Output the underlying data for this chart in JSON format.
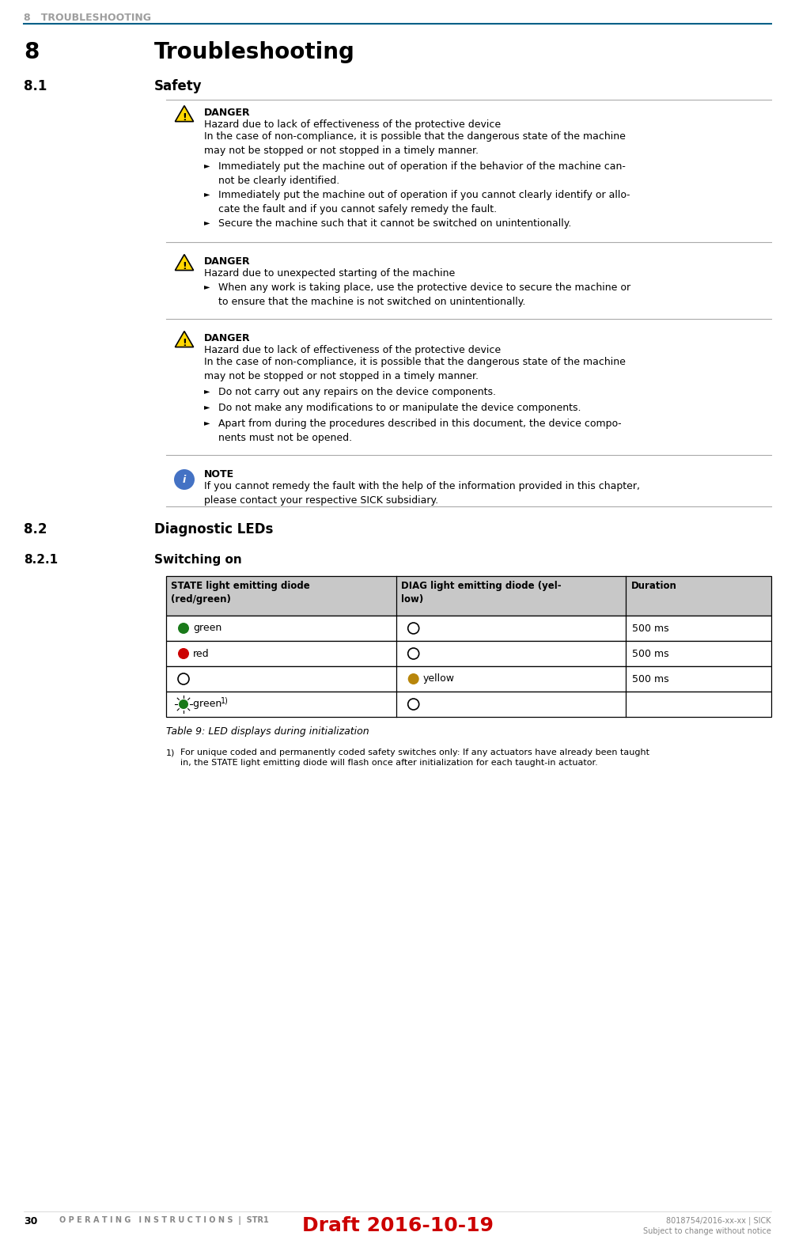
{
  "page_width": 10.05,
  "page_height": 15.81,
  "bg_color": "#ffffff",
  "header_text": "8   TROUBLESHOOTING",
  "header_color": "#9e9e9e",
  "header_line_color": "#005f87",
  "chapter_num": "8",
  "chapter_title": "Troubleshooting",
  "section_81": "8.1",
  "section_81_title": "Safety",
  "danger1_title": "DANGER",
  "danger1_subtitle": "Hazard due to lack of effectiveness of the protective device",
  "danger1_body": "In the case of non-compliance, it is possible that the dangerous state of the machine\nmay not be stopped or not stopped in a timely manner.",
  "danger1_bullets": [
    "Immediately put the machine out of operation if the behavior of the machine can‐\nnot be clearly identified.",
    "Immediately put the machine out of operation if you cannot clearly identify or allo‐\ncate the fault and if you cannot safely remedy the fault.",
    "Secure the machine such that it cannot be switched on unintentionally."
  ],
  "danger2_title": "DANGER",
  "danger2_subtitle": "Hazard due to unexpected starting of the machine",
  "danger2_bullets": [
    "When any work is taking place, use the protective device to secure the machine or\nto ensure that the machine is not switched on unintentionally."
  ],
  "danger3_title": "DANGER",
  "danger3_subtitle": "Hazard due to lack of effectiveness of the protective device",
  "danger3_body": "In the case of non-compliance, it is possible that the dangerous state of the machine\nmay not be stopped or not stopped in a timely manner.",
  "danger3_bullets": [
    "Do not carry out any repairs on the device components.",
    "Do not make any modifications to or manipulate the device components.",
    "Apart from during the procedures described in this document, the device compo‐\nnents must not be opened."
  ],
  "note_title": "NOTE",
  "note_body": "If you cannot remedy the fault with the help of the information provided in this chapter,\nplease contact your respective SICK subsidiary.",
  "section_82": "8.2",
  "section_82_title": "Diagnostic LEDs",
  "section_821": "8.2.1",
  "section_821_title": "Switching on",
  "table_headers": [
    "STATE light emitting diode\n(red/green)",
    "DIAG light emitting diode (yel-\nlow)",
    "Duration"
  ],
  "table_rows": [
    {
      "col0": "green_circle",
      "col1": "empty_circle",
      "col2": "500 ms"
    },
    {
      "col0": "red_circle",
      "col1": "empty_circle",
      "col2": "500 ms"
    },
    {
      "col0": "empty_circle",
      "col1": "yellow_circle",
      "col2": "500 ms"
    },
    {
      "col0": "flash_green",
      "col1": "empty_circle",
      "col2": ""
    }
  ],
  "table_caption": "Table 9: LED displays during initialization",
  "footnote_num": "1)",
  "footnote_text": "For unique coded and permanently coded safety switches only: If any actuators have already been taught\nin, the STATE light emitting diode will flash once after initialization for each taught-in actuator.",
  "footer_left_num": "30",
  "footer_left_text": "O P E R A T I N G   I N S T R U C T I O N S  |  STR1",
  "footer_center_text": "Draft 2016-10-19",
  "footer_right_text": "8018754/2016-xx-xx | SICK\nSubject to change without notice",
  "danger_yellow": "#FFD700",
  "note_blue": "#4472C4",
  "green_led": "#1a7a1a",
  "red_led": "#cc0000",
  "yellow_led": "#b8860b",
  "table_header_bg": "#c8c8c8",
  "separator_color": "#aaaaaa",
  "text_color": "#000000",
  "border_color": "#000000"
}
